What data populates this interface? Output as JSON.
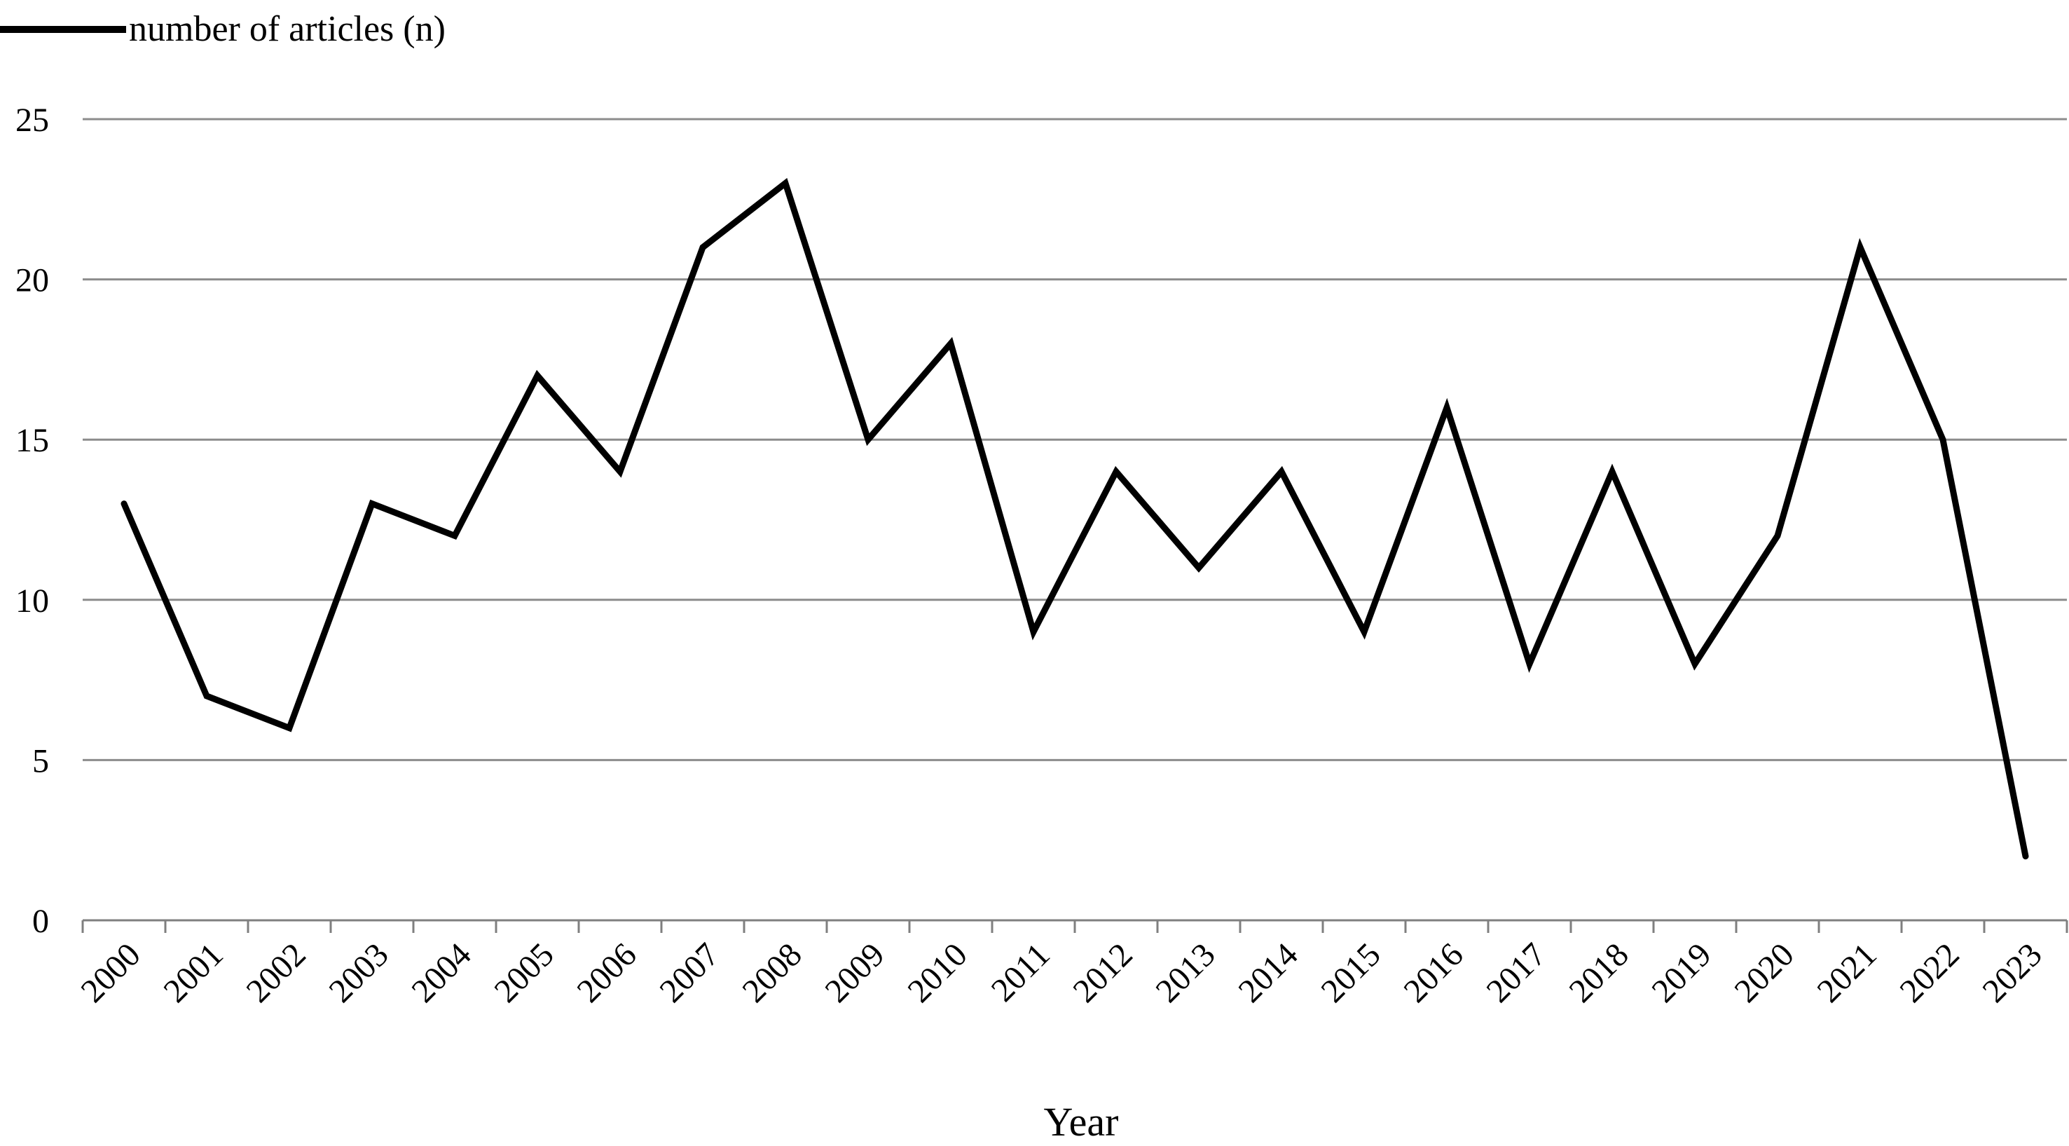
{
  "chart_data": {
    "type": "line",
    "title": "",
    "xlabel": "Year",
    "ylabel": "",
    "categories": [
      "2000",
      "2001",
      "2002",
      "2003",
      "2004",
      "2005",
      "2006",
      "2007",
      "2008",
      "2009",
      "2010",
      "2011",
      "2012",
      "2013",
      "2014",
      "2015",
      "2016",
      "2017",
      "2018",
      "2019",
      "2020",
      "2021",
      "2022",
      "2023"
    ],
    "series": [
      {
        "name": "number of articles (n)",
        "values": [
          13,
          7,
          6,
          13,
          12,
          17,
          14,
          21,
          23,
          15,
          18,
          9,
          14,
          11,
          14,
          9,
          16,
          8,
          14,
          8,
          12,
          21,
          15,
          2
        ]
      }
    ],
    "ylim": [
      0,
      25
    ],
    "yticks": [
      "0",
      "5",
      "10",
      "15",
      "20",
      "25"
    ],
    "grid": true,
    "legend_position": "top-left",
    "colors": {
      "line": "#000000",
      "grid": "#8c8c8c",
      "axis": "#7f7f7f",
      "text": "#000000"
    }
  }
}
